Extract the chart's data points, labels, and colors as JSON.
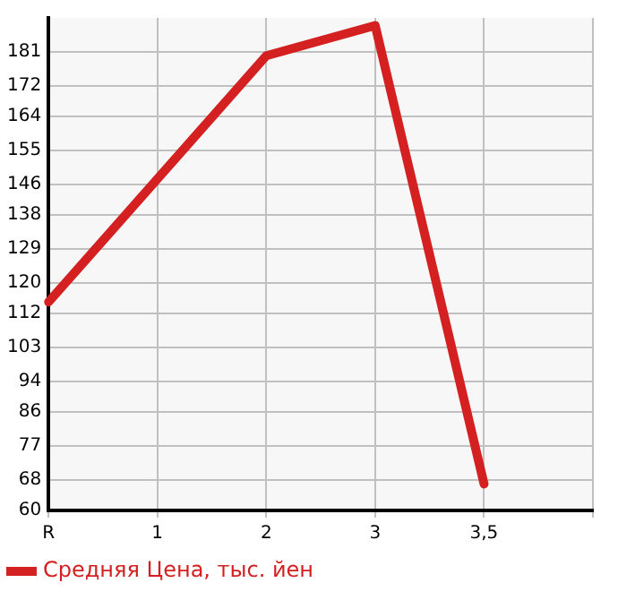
{
  "chart_data": {
    "type": "line",
    "categories": [
      "R",
      "1",
      "2",
      "3",
      "3,5",
      null
    ],
    "series": [
      {
        "name": "Средняя Цена, тыс. йен",
        "color": "#d42020",
        "values": [
          115,
          null,
          180,
          188,
          67,
          null
        ]
      }
    ],
    "ylim": [
      60,
      190
    ],
    "yticks": [
      60,
      68,
      77,
      86,
      94,
      103,
      112,
      120,
      129,
      138,
      146,
      155,
      164,
      172,
      181
    ],
    "grid": true,
    "legend": "bottom left",
    "marker": "none",
    "line_style": "solid"
  }
}
